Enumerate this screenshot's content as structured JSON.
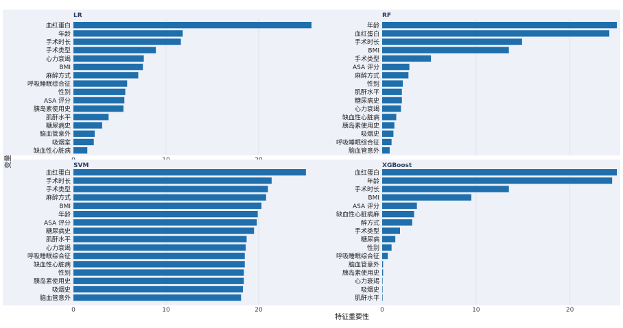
{
  "figure": {
    "ylabel": "变量",
    "xlabel": "特征重要性",
    "bar_color": "#1f6fad",
    "panel_bg": "#eef1f8",
    "grid_color": "#ffffff",
    "text_color": "#222222"
  },
  "chart_data": [
    {
      "type": "bar",
      "orientation": "horizontal",
      "title": "LR",
      "xlim": [
        0,
        26
      ],
      "xticks": [
        0,
        10,
        20
      ],
      "categories": [
        "血红蛋白",
        "年龄",
        "手术时长",
        "手术类型",
        "心力衰竭",
        "BMI",
        "麻醉方式",
        "呼吸睡眠综合征",
        "性别",
        "ASA 评分",
        "胰岛素使用史",
        "肌酐水平",
        "糖尿病史",
        "脑血管意外",
        "吸烟室",
        "缺血性心脏病"
      ],
      "values": [
        25.9,
        11.8,
        11.6,
        8.9,
        7.6,
        7.5,
        7.0,
        5.8,
        5.6,
        5.5,
        5.4,
        3.8,
        3.1,
        2.3,
        2.2,
        1.5
      ]
    },
    {
      "type": "bar",
      "orientation": "horizontal",
      "title": "RF",
      "xlim": [
        0,
        25
      ],
      "xticks": [],
      "categories": [
        "年龄",
        "血红蛋白",
        "手术时长",
        "BMI",
        "手术类型",
        "ASA 评分",
        "麻醉方式",
        "性别",
        "肌酐水平",
        "糖尿病史",
        "心力衰竭",
        "缺血性心脏病",
        "胰岛素使用史",
        "吸烟史",
        "呼吸睡眠综合征",
        "脑血管意外"
      ],
      "values": [
        25.0,
        24.2,
        14.9,
        13.5,
        5.2,
        2.9,
        2.8,
        2.2,
        2.1,
        2.1,
        2.0,
        1.5,
        1.3,
        1.2,
        1.0,
        0.8
      ]
    },
    {
      "type": "bar",
      "orientation": "horizontal",
      "title": "SVM",
      "xlim": [
        0,
        26
      ],
      "xticks": [
        0,
        10,
        20
      ],
      "categories": [
        "血红蛋白",
        "手术时长",
        "手术类型",
        "麻醉方式",
        "BMI",
        "年龄",
        "ASA 评分",
        "糖尿病史",
        "肌酐水平",
        "心力衰竭",
        "呼吸睡眠综合征",
        "缺血性心脏病",
        "性别",
        "胰岛素使用史",
        "吸烟史",
        "脑血管意外"
      ],
      "values": [
        25.1,
        21.4,
        21.0,
        20.8,
        20.3,
        19.9,
        19.8,
        19.5,
        18.7,
        18.6,
        18.5,
        18.5,
        18.4,
        18.4,
        18.3,
        18.1
      ]
    },
    {
      "type": "bar",
      "orientation": "horizontal",
      "title": "XGBoost",
      "xlim": [
        0,
        25
      ],
      "xticks": [
        0,
        10,
        20
      ],
      "categories": [
        "血红蛋白",
        "年龄",
        "手术时长",
        "BMI",
        "ASA 评分",
        "缺血性心脏病麻",
        "醉方式",
        "手术类型",
        "糖尿病",
        "性别",
        "呼吸睡眠综合征",
        "脑血管意外",
        "胰岛素使用史",
        "心力衰竭",
        "吸烟史",
        "肌酐水平"
      ],
      "values": [
        25.0,
        24.5,
        13.5,
        9.5,
        3.7,
        3.4,
        3.2,
        1.9,
        1.4,
        1.0,
        0.6,
        0.1,
        0.1,
        0.05,
        0.05,
        0.05
      ]
    }
  ]
}
